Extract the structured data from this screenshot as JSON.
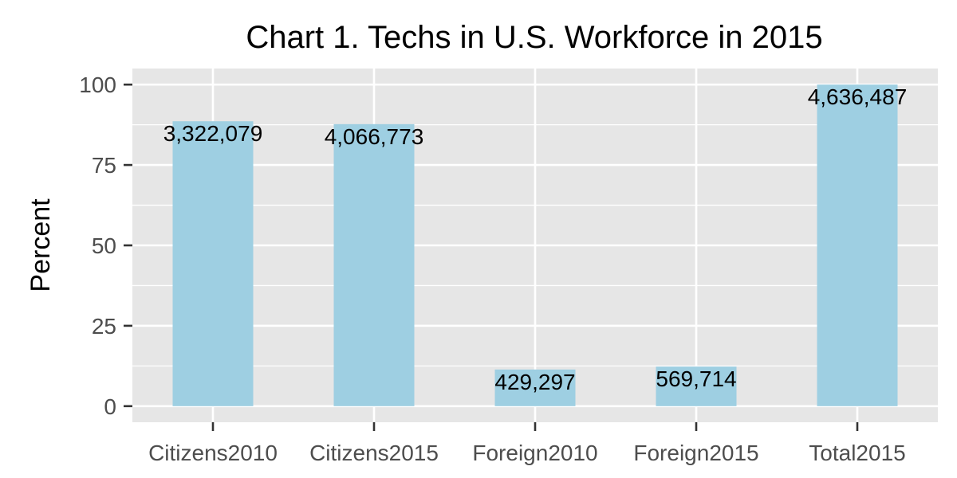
{
  "chart_data": {
    "type": "bar",
    "title": "Chart 1. Techs in U.S. Workforce in 2015",
    "xlabel": "",
    "ylabel": "Percent",
    "categories": [
      "Citizens2010",
      "Citizens2015",
      "Foreign2010",
      "Foreign2015",
      "Total2015"
    ],
    "values": [
      88.6,
      87.7,
      11.4,
      12.3,
      100
    ],
    "data_labels": [
      "3,322,079",
      "4,066,773",
      "429,297",
      "569,714",
      "4,636,487"
    ],
    "ylim": [
      -5,
      105
    ],
    "yticks": [
      0,
      25,
      50,
      75,
      100
    ],
    "grid": true,
    "legend": "none",
    "colors": {
      "bar": "#9ecfe2",
      "panel": "#e6e6e6",
      "grid": "#ffffff",
      "tick": "#333333"
    }
  }
}
